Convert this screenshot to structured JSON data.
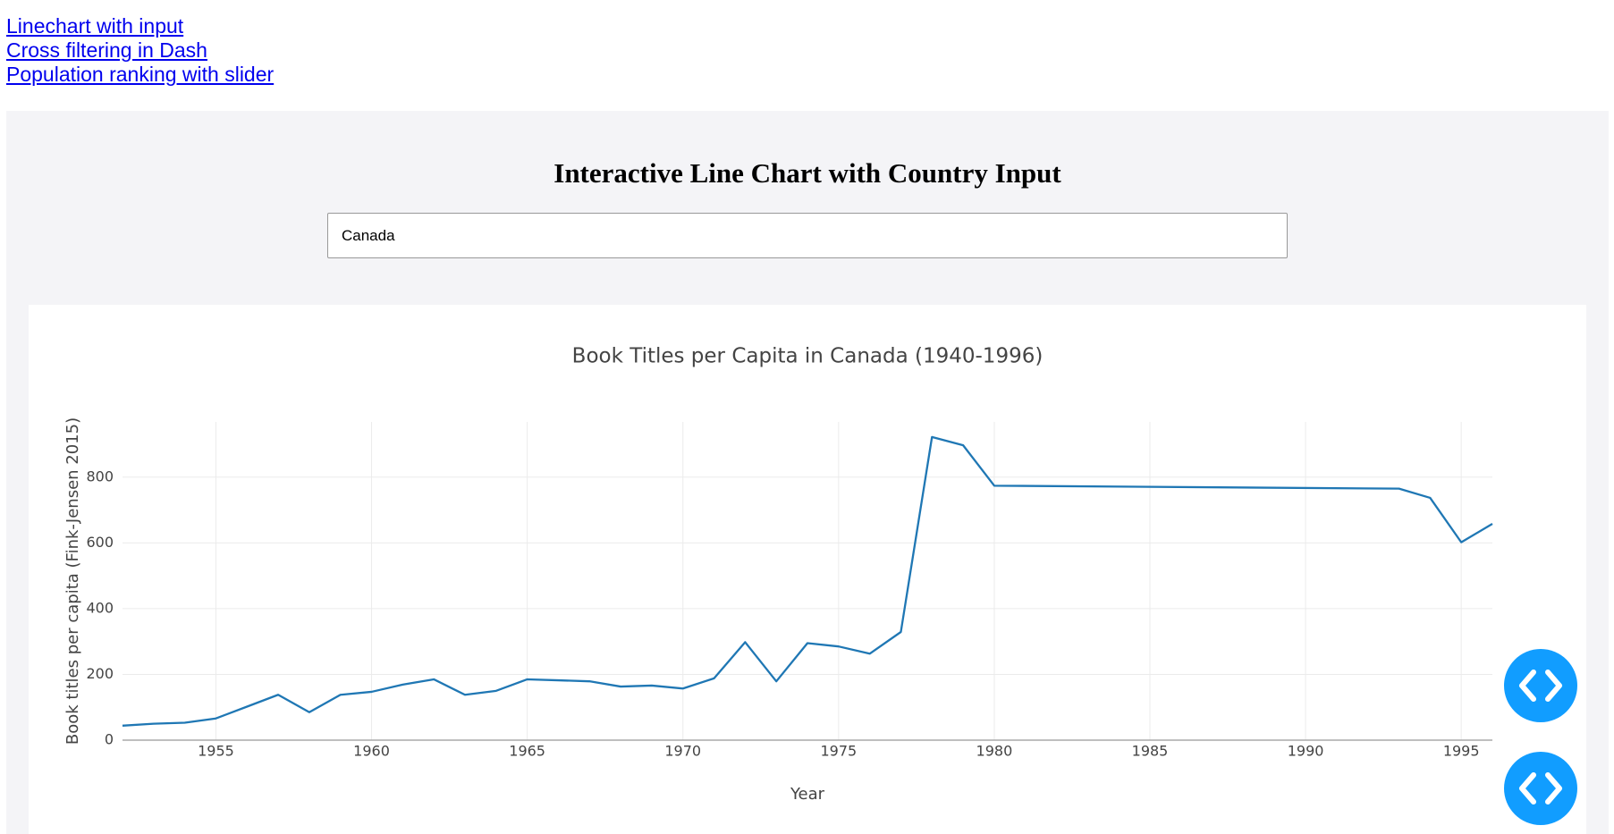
{
  "links": [
    "Linechart with input",
    "Cross filtering in Dash",
    "Population ranking with slider"
  ],
  "heading": "Interactive Line Chart with Country Input",
  "input_value": "Canada",
  "chart_data": {
    "type": "line",
    "title": "Book Titles per Capita in Canada (1940-1996)",
    "x_label": "Year",
    "y_label": "Book titles per capita (Fink-Jensen 2015)",
    "x": [
      1952,
      1953,
      1954,
      1955,
      1956,
      1957,
      1958,
      1959,
      1960,
      1961,
      1962,
      1963,
      1964,
      1965,
      1966,
      1967,
      1968,
      1969,
      1970,
      1971,
      1972,
      1973,
      1974,
      1975,
      1976,
      1977,
      1978,
      1979,
      1980,
      1993,
      1994,
      1995,
      1996
    ],
    "values": [
      44,
      50,
      53,
      66,
      102,
      138,
      85,
      138,
      147,
      169,
      185,
      138,
      150,
      185,
      182,
      179,
      163,
      166,
      157,
      188,
      298,
      179,
      295,
      285,
      263,
      329,
      922,
      897,
      774,
      765,
      737,
      602,
      658
    ],
    "color": "#1f77b4",
    "xlim": [
      1952,
      1996
    ],
    "xticks": [
      1955,
      1960,
      1965,
      1970,
      1975,
      1980,
      1985,
      1990,
      1995
    ],
    "ylim": [
      0,
      968
    ],
    "yticks": [
      0,
      200,
      400,
      600,
      800
    ],
    "grid": true
  }
}
